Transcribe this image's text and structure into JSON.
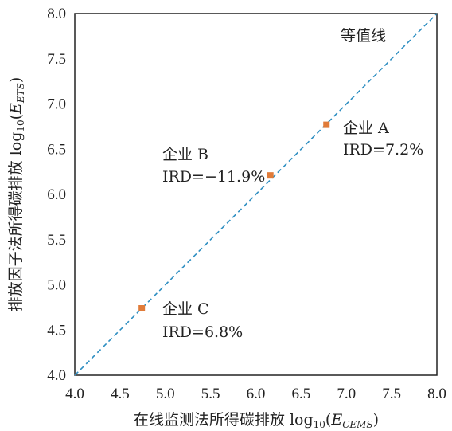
{
  "chart_data": {
    "type": "scatter",
    "xlabel": {
      "main": "在线监测法所得碳排放 log",
      "sub": "10",
      "paren_open": "(",
      "var": "E",
      "var_sub": "CEMS",
      "paren_close": ")"
    },
    "ylabel": {
      "main": "排放因子法所得碳排放 log",
      "sub": "10",
      "paren_open": "(",
      "var": "E",
      "var_sub": "ETS",
      "paren_close": ")"
    },
    "xlim": [
      4.0,
      8.0
    ],
    "ylim": [
      4.0,
      8.0
    ],
    "x_ticks": [
      "4.0",
      "4.5",
      "5.0",
      "5.5",
      "6.0",
      "6.5",
      "7.0",
      "7.5",
      "8.0"
    ],
    "y_ticks": [
      "4.0",
      "4.5",
      "5.0",
      "5.5",
      "6.0",
      "6.5",
      "7.0",
      "7.5",
      "8.0"
    ],
    "grid": false,
    "marker_color": "#e07b39",
    "line_color": "#2f8fc2",
    "identity_line_label": "等值线",
    "points": [
      {
        "x": 6.78,
        "y": 6.77,
        "name": "企业 A",
        "ird": "IRD=7.2%"
      },
      {
        "x": 6.16,
        "y": 6.21,
        "name": "企业 B",
        "ird": "IRD=−11.9%"
      },
      {
        "x": 4.74,
        "y": 4.74,
        "name": "企业 C",
        "ird": "IRD=6.8%"
      }
    ]
  }
}
